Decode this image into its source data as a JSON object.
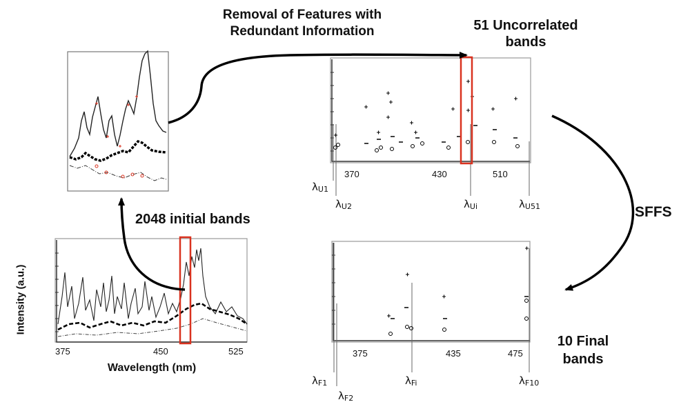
{
  "titles": {
    "removal_line1": "Removal of Features with",
    "removal_line2": "Redundant Information",
    "uncorrelated_line1": "51 Uncorrelated",
    "uncorrelated_line2": "bands",
    "initial": "2048 initial bands",
    "sffs": "SFFS",
    "final_line1": "10 Final",
    "final_line2": "bands"
  },
  "spectrum_chart": {
    "xlabel": "Wavelength (nm)",
    "ylabel": "Intensity (a.u.)",
    "xticks": [
      "375",
      "450",
      "525"
    ]
  },
  "uncorrelated_chart": {
    "xticks": [
      "370",
      "430",
      "510"
    ],
    "lambda_labels": [
      {
        "sym": "λ",
        "sub": "U1"
      },
      {
        "sym": "λ",
        "sub": "U2"
      },
      {
        "sym": "λ",
        "sub": "Ui"
      },
      {
        "sym": "λ",
        "sub": "U51"
      }
    ]
  },
  "final_chart": {
    "xticks": [
      "375",
      "435",
      "475"
    ],
    "lambda_labels": [
      {
        "sym": "λ",
        "sub": "F1"
      },
      {
        "sym": "λ",
        "sub": "F2"
      },
      {
        "sym": "λ",
        "sub": "Fi"
      },
      {
        "sym": "λ",
        "sub": "F10"
      }
    ]
  },
  "colors": {
    "highlight": "#d9321f",
    "ink": "#111111",
    "frame": "#9a9a9a"
  }
}
